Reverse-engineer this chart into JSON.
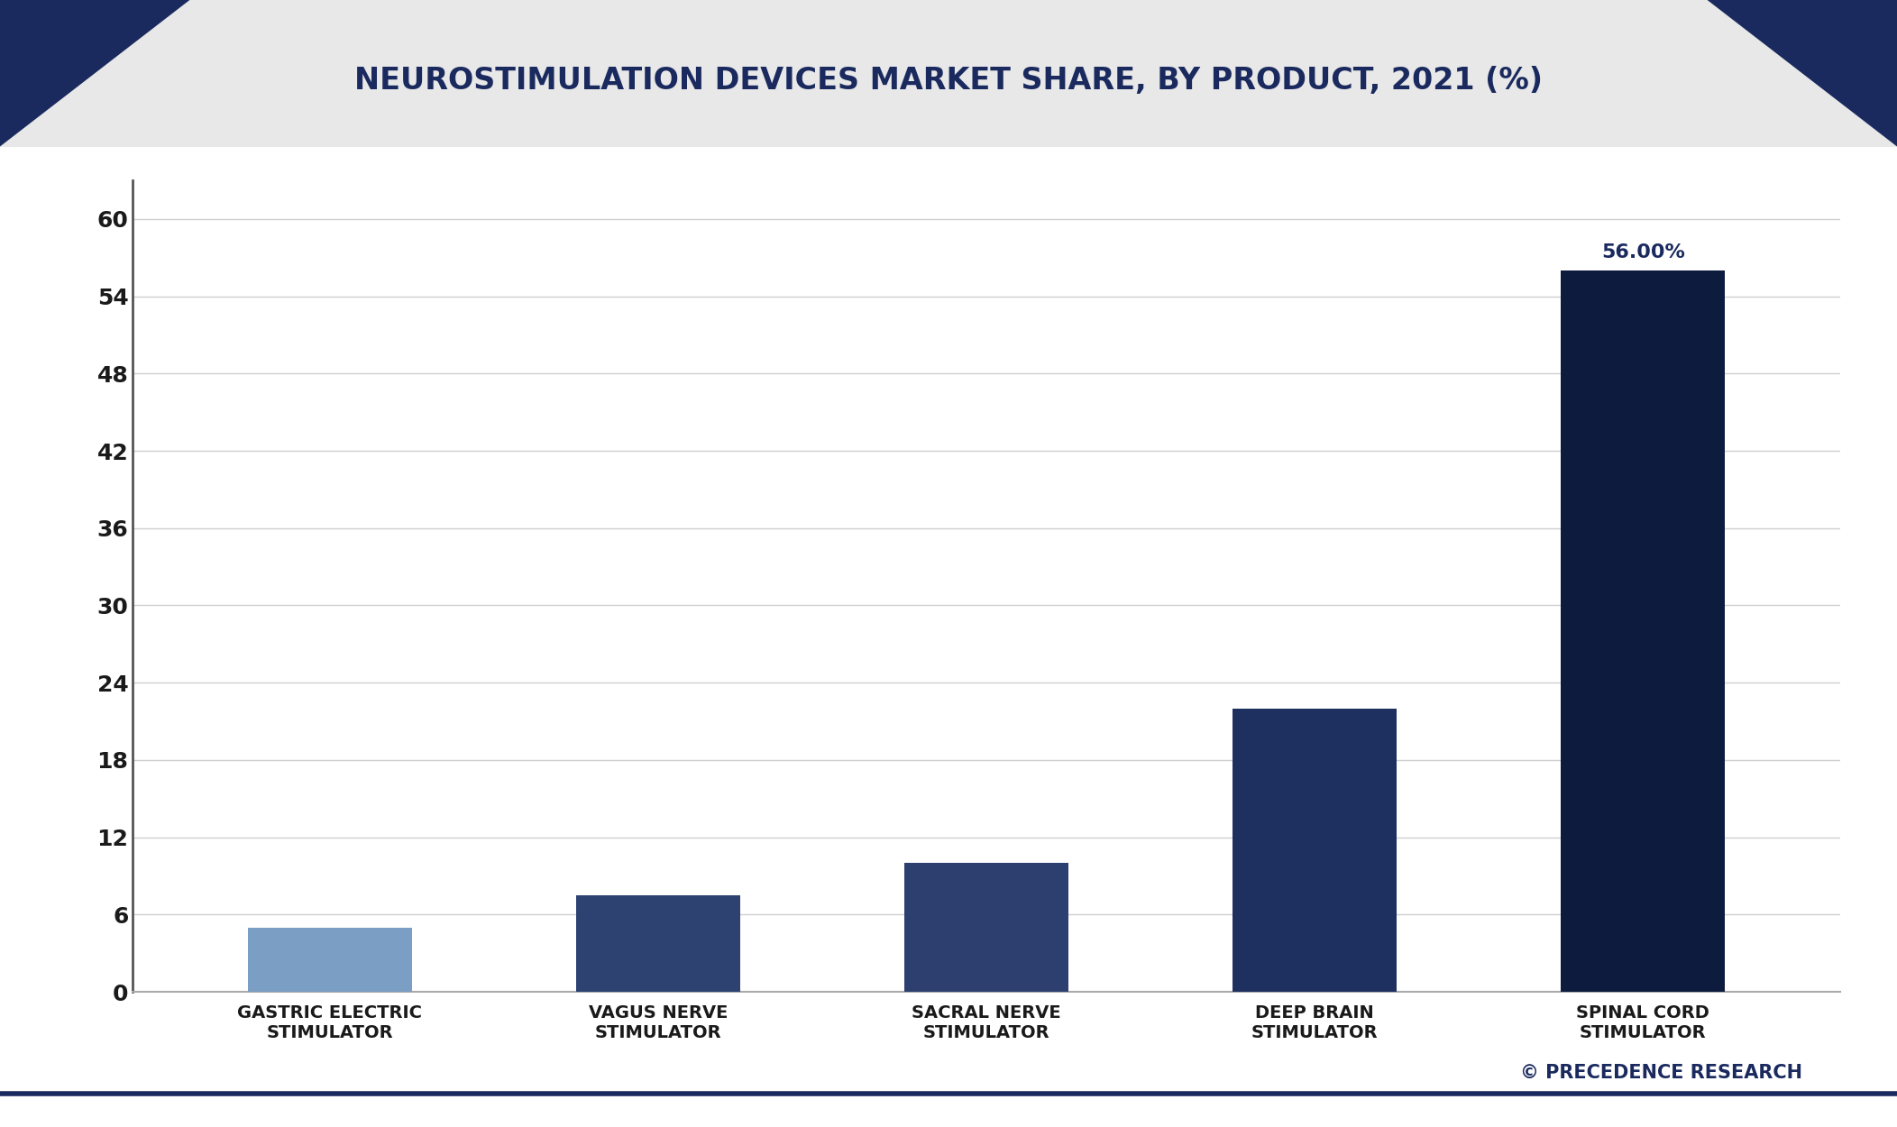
{
  "title": "NEUROSTIMULATION DEVICES MARKET SHARE, BY PRODUCT, 2021 (%)",
  "categories": [
    "GASTRIC ELECTRIC\nSTIMULATOR",
    "VAGUS NERVE\nSTIMULATOR",
    "SACRAL NERVE\nSTIMULATOR",
    "DEEP BRAIN\nSTIMULATOR",
    "SPINAL CORD\nSTIMULATOR"
  ],
  "values": [
    5.0,
    7.5,
    10.0,
    22.0,
    56.0
  ],
  "bar_colors": [
    "#7b9ec4",
    "#2d4271",
    "#2d3f6e",
    "#1e3060",
    "#0d1b3e"
  ],
  "bar_annotation": [
    null,
    null,
    null,
    null,
    "56.00%"
  ],
  "yticks": [
    0,
    6,
    12,
    18,
    24,
    30,
    36,
    42,
    48,
    54,
    60
  ],
  "ylim": [
    0,
    63
  ],
  "background_color": "#ffffff",
  "plot_bg_color": "#ffffff",
  "header_bg_color": "#e8e8e8",
  "title_color": "#1a2a5e",
  "tick_color": "#1a1a1a",
  "grid_color": "#d0d0d0",
  "annotation_color": "#1a2a5e",
  "watermark": "© PRECEDENCE RESEARCH",
  "watermark_color": "#1a2a5e",
  "triangle_color": "#1a2a5e",
  "border_color": "#1a2a5e",
  "title_fontsize": 24,
  "tick_fontsize": 18,
  "xlabel_fontsize": 14,
  "annotation_fontsize": 16,
  "watermark_fontsize": 15,
  "bar_width": 0.5
}
